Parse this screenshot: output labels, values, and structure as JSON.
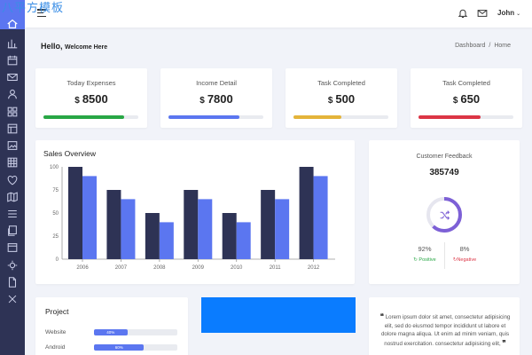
{
  "brand": "八平方模板",
  "topbar": {
    "user_name": "John",
    "caret": "⌄"
  },
  "page": {
    "hello": "Hello,",
    "welcome": "Welcome Here"
  },
  "breadcrumb": {
    "item1": "Dashboard",
    "separator": "/",
    "item2": "Home"
  },
  "stats": [
    {
      "label": "Today Expenses",
      "currency": "$",
      "value": "8500",
      "progress_percent": 85,
      "color": "#28a745"
    },
    {
      "label": "Income Detail",
      "currency": "$",
      "value": "7800",
      "progress_percent": 75,
      "color": "#5b76f0"
    },
    {
      "label": "Task Completed",
      "currency": "$",
      "value": "500",
      "progress_percent": 50,
      "color": "#e4b43a"
    },
    {
      "label": "Task Completed",
      "currency": "$",
      "value": "650",
      "progress_percent": 65,
      "color": "#dc3545"
    }
  ],
  "sales": {
    "title": "Sales Overview"
  },
  "chart_data": {
    "type": "bar",
    "title": "Sales Overview",
    "categories": [
      "2006",
      "2007",
      "2008",
      "2009",
      "2010",
      "2011",
      "2012"
    ],
    "series": [
      {
        "values": [
          100,
          75,
          50,
          75,
          50,
          75,
          100
        ],
        "color": "#2e3355"
      },
      {
        "values": [
          90,
          65,
          40,
          65,
          40,
          65,
          90
        ],
        "color": "#5b76f0"
      }
    ],
    "ylim": [
      0,
      100
    ],
    "yticks": [
      "100",
      "75",
      "50",
      "25",
      "0"
    ],
    "grid": false
  },
  "feedback": {
    "title": "Customer Feedback",
    "count": "385749",
    "positive_percent": "92%",
    "negative_percent": "8%",
    "positive_label": "↻ Positive",
    "negative_label": "↻Negative",
    "ring_fraction": 0.62
  },
  "project": {
    "title": "Project",
    "rows": [
      {
        "label": "Website",
        "percent": "40%",
        "value": 40
      },
      {
        "label": "Android",
        "percent": "60%",
        "value": 60
      }
    ]
  },
  "quote": {
    "open_mark": "❝",
    "text": "Lorem ipsum dolor sit amet, consectetur adipisicing elit, sed do eiusmod tempor incididunt ut labore et dolore magna aliqua. Ut enim ad minim veniam, quis nostrud exercitation. consectetur adipisicing elit,",
    "close_mark": "❞"
  },
  "colors": {
    "sidebar": "#2e3355",
    "accent": "#5b76f0",
    "ring": "#7d60d6"
  }
}
